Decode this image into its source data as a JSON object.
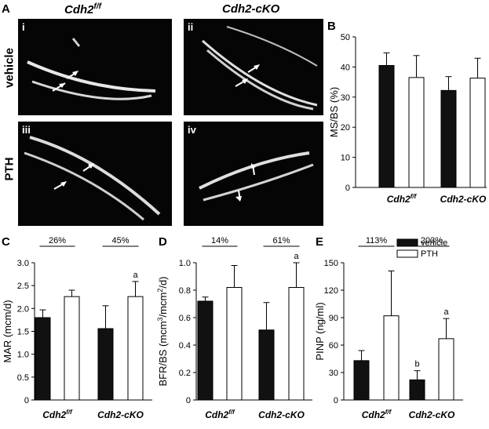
{
  "panel_a": {
    "letter": "A",
    "col_titles": [
      "Cdh2",
      "Cdh2-cKO"
    ],
    "col_title_sup": "f/f",
    "row_labels": [
      "vehicle",
      "PTH"
    ],
    "image_labels": [
      "i",
      "ii",
      "iii",
      "iv"
    ]
  },
  "chart_data": [
    {
      "type": "bar",
      "letter": "B",
      "ylabel": "MS/BS (%)",
      "ylim": [
        0,
        50
      ],
      "yticks": [
        "0",
        "10",
        "20",
        "30",
        "40",
        "50"
      ],
      "categories": [
        "Cdh2",
        "Cdh2-cKO"
      ],
      "category_sup": [
        "f/f",
        ""
      ],
      "series": [
        {
          "name": "vehicle",
          "color": "#111111",
          "values": [
            40.5,
            32.2
          ],
          "errors": [
            4.2,
            4.6
          ]
        },
        {
          "name": "PTH",
          "color": "#ffffff",
          "values": [
            36.5,
            36.3
          ],
          "errors": [
            7.3,
            6.6
          ]
        }
      ],
      "pct_labels": [
        "",
        ""
      ],
      "sig_labels": [
        [
          "",
          ""
        ],
        [
          "",
          ""
        ]
      ]
    },
    {
      "type": "bar",
      "letter": "C",
      "ylabel": "MAR (mcm/d)",
      "ylim": [
        0,
        3.0
      ],
      "yticks": [
        "0",
        "0.5",
        "1.0",
        "1.5",
        "2.0",
        "2.5",
        "3.0"
      ],
      "categories": [
        "Cdh2",
        "Cdh2-cKO"
      ],
      "category_sup": [
        "f/f",
        ""
      ],
      "series": [
        {
          "name": "vehicle",
          "color": "#111111",
          "values": [
            1.8,
            1.56
          ],
          "errors": [
            0.17,
            0.5
          ]
        },
        {
          "name": "PTH",
          "color": "#ffffff",
          "values": [
            2.26,
            2.26
          ],
          "errors": [
            0.14,
            0.33
          ]
        }
      ],
      "pct_labels": [
        "26%",
        "45%"
      ],
      "sig_labels": [
        [
          "",
          ""
        ],
        [
          "",
          "a"
        ]
      ]
    },
    {
      "type": "bar",
      "letter": "D",
      "ylabel_parts": [
        "BFR/BS (mcm",
        "3",
        "/mcm",
        "2",
        "/d)"
      ],
      "ylim": [
        0,
        1.0
      ],
      "yticks": [
        "0",
        "0.2",
        "0.4",
        "0.6",
        "0.8",
        "1.0"
      ],
      "categories": [
        "Cdh2",
        "Cdh2-cKO"
      ],
      "category_sup": [
        "f/f",
        ""
      ],
      "series": [
        {
          "name": "vehicle",
          "color": "#111111",
          "values": [
            0.72,
            0.51
          ],
          "errors": [
            0.03,
            0.2
          ]
        },
        {
          "name": "PTH",
          "color": "#ffffff",
          "values": [
            0.82,
            0.82
          ],
          "errors": [
            0.16,
            0.18
          ]
        }
      ],
      "pct_labels": [
        "14%",
        "61%"
      ],
      "sig_labels": [
        [
          "",
          ""
        ],
        [
          "",
          "a"
        ]
      ]
    },
    {
      "type": "bar",
      "letter": "E",
      "ylabel": "PINP (ng/ml)",
      "ylim": [
        0,
        150
      ],
      "yticks": [
        "0",
        "30",
        "60",
        "90",
        "120",
        "150"
      ],
      "categories": [
        "Cdh2",
        "Cdh2-cKO"
      ],
      "category_sup": [
        "f/f",
        ""
      ],
      "series": [
        {
          "name": "vehicle",
          "color": "#111111",
          "values": [
            43,
            22
          ],
          "errors": [
            11,
            10
          ]
        },
        {
          "name": "PTH",
          "color": "#ffffff",
          "values": [
            92,
            67
          ],
          "errors": [
            49,
            22
          ]
        }
      ],
      "pct_labels": [
        "113%",
        "203%"
      ],
      "sig_labels": [
        [
          "",
          "b"
        ],
        [
          "",
          "a"
        ]
      ]
    }
  ],
  "legend": {
    "placement": "top-right",
    "items": [
      {
        "name": "vehicle",
        "color": "#111111"
      },
      {
        "name": "PTH",
        "color": "#ffffff"
      }
    ]
  }
}
